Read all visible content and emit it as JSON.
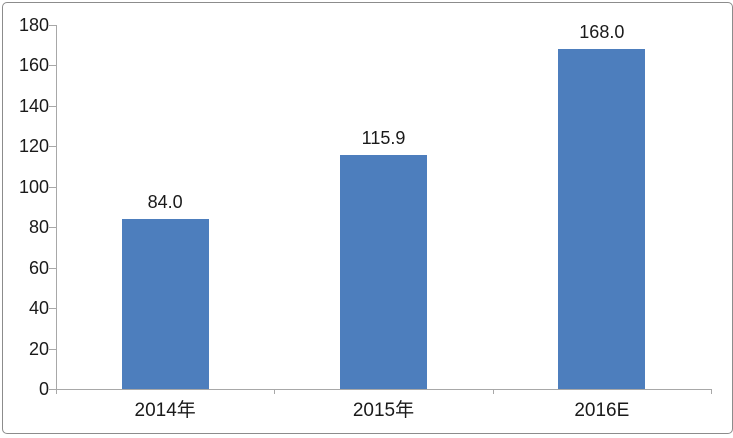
{
  "chart_data": {
    "type": "bar",
    "title": "",
    "xlabel": "",
    "ylabel": "",
    "categories": [
      "2014年",
      "2015年",
      "2016E"
    ],
    "values": [
      84.0,
      115.9,
      168.0
    ],
    "value_labels": [
      "84.0",
      "115.9",
      "168.0"
    ],
    "ylim": [
      0,
      180
    ],
    "ytick_step": 20,
    "ytick_labels": [
      "0",
      "20",
      "40",
      "60",
      "80",
      "100",
      "120",
      "140",
      "160",
      "180"
    ],
    "grid": false,
    "legend": false,
    "colors": {
      "bar": "#4d7ebd",
      "axis": "#a8a8a8",
      "text": "#1a1a1a",
      "border": "#8c8c8c",
      "background": "#ffffff"
    }
  }
}
